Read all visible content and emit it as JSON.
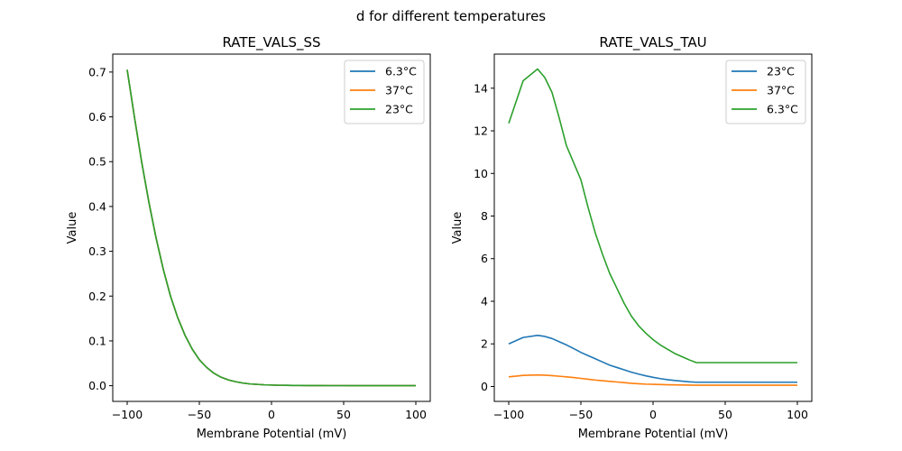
{
  "figure": {
    "suptitle": "d for different temperatures"
  },
  "chart_data": [
    {
      "type": "line",
      "title": "RATE_VALS_SS",
      "xlabel": "Membrane Potential (mV)",
      "ylabel": "Value",
      "xlim": [
        -110,
        110
      ],
      "ylim": [
        -0.035,
        0.74
      ],
      "xticks": [
        -100,
        -50,
        0,
        50,
        100
      ],
      "xtick_labels": [
        "−100",
        "−50",
        "0",
        "50",
        "100"
      ],
      "yticks": [
        0.0,
        0.1,
        0.2,
        0.3,
        0.4,
        0.5,
        0.6,
        0.7
      ],
      "ytick_labels": [
        "0.0",
        "0.1",
        "0.2",
        "0.3",
        "0.4",
        "0.5",
        "0.6",
        "0.7"
      ],
      "grid": false,
      "legend_position": "top-right",
      "x": [
        -100,
        -95,
        -90,
        -85,
        -80,
        -75,
        -70,
        -65,
        -60,
        -55,
        -50,
        -45,
        -40,
        -35,
        -30,
        -25,
        -20,
        -15,
        -10,
        -5,
        0,
        5,
        10,
        15,
        20,
        25,
        30,
        35,
        40,
        45,
        50,
        55,
        60,
        65,
        70,
        75,
        80,
        85,
        90,
        95,
        100
      ],
      "series": [
        {
          "name": "6.3°C",
          "color": "#1f77b4",
          "values": [
            0.705,
            0.6,
            0.5,
            0.41,
            0.33,
            0.26,
            0.2,
            0.152,
            0.113,
            0.082,
            0.058,
            0.041,
            0.028,
            0.019,
            0.013,
            0.009,
            0.006,
            0.004,
            0.003,
            0.002,
            0.0015,
            0.001,
            0.0008,
            0.0006,
            0.0005,
            0.0004,
            0.0003,
            0.0003,
            0.0002,
            0.0002,
            0.0002,
            0.0001,
            0.0001,
            0.0001,
            0.0001,
            0.0001,
            0.0001,
            0.0001,
            0.0001,
            0.0001,
            0.0001
          ]
        },
        {
          "name": "37°C",
          "color": "#ff7f0e",
          "values": [
            0.705,
            0.6,
            0.5,
            0.41,
            0.33,
            0.26,
            0.2,
            0.152,
            0.113,
            0.082,
            0.058,
            0.041,
            0.028,
            0.019,
            0.013,
            0.009,
            0.006,
            0.004,
            0.003,
            0.002,
            0.0015,
            0.001,
            0.0008,
            0.0006,
            0.0005,
            0.0004,
            0.0003,
            0.0003,
            0.0002,
            0.0002,
            0.0002,
            0.0001,
            0.0001,
            0.0001,
            0.0001,
            0.0001,
            0.0001,
            0.0001,
            0.0001,
            0.0001,
            0.0001
          ]
        },
        {
          "name": "23°C",
          "color": "#2ca02c",
          "values": [
            0.705,
            0.6,
            0.5,
            0.41,
            0.33,
            0.26,
            0.2,
            0.152,
            0.113,
            0.082,
            0.058,
            0.041,
            0.028,
            0.019,
            0.013,
            0.009,
            0.006,
            0.004,
            0.003,
            0.002,
            0.0015,
            0.001,
            0.0008,
            0.0006,
            0.0005,
            0.0004,
            0.0003,
            0.0003,
            0.0002,
            0.0002,
            0.0002,
            0.0001,
            0.0001,
            0.0001,
            0.0001,
            0.0001,
            0.0001,
            0.0001,
            0.0001,
            0.0001,
            0.0001
          ]
        }
      ]
    },
    {
      "type": "line",
      "title": "RATE_VALS_TAU",
      "xlabel": "Membrane Potential (mV)",
      "ylabel": "Value",
      "xlim": [
        -110,
        110
      ],
      "ylim": [
        -0.7,
        15.6
      ],
      "xticks": [
        -100,
        -50,
        0,
        50,
        100
      ],
      "xtick_labels": [
        "−100",
        "−50",
        "0",
        "50",
        "100"
      ],
      "yticks": [
        0,
        2,
        4,
        6,
        8,
        10,
        12,
        14
      ],
      "ytick_labels": [
        "0",
        "2",
        "4",
        "6",
        "8",
        "10",
        "12",
        "14"
      ],
      "grid": false,
      "legend_position": "top-right",
      "x": [
        -100,
        -90,
        -80,
        -75,
        -70,
        -65,
        -60,
        -55,
        -50,
        -45,
        -40,
        -35,
        -30,
        -25,
        -20,
        -15,
        -10,
        -5,
        0,
        5,
        10,
        15,
        20,
        25,
        30,
        40,
        50,
        60,
        70,
        80,
        90,
        100
      ],
      "series": [
        {
          "name": "23°C",
          "color": "#1f77b4",
          "values": [
            2.0,
            2.3,
            2.4,
            2.35,
            2.25,
            2.1,
            1.95,
            1.78,
            1.6,
            1.45,
            1.3,
            1.15,
            1.0,
            0.89,
            0.78,
            0.67,
            0.58,
            0.5,
            0.43,
            0.37,
            0.32,
            0.28,
            0.25,
            0.22,
            0.2,
            0.2,
            0.2,
            0.2,
            0.2,
            0.2,
            0.2,
            0.2
          ]
        },
        {
          "name": "37°C",
          "color": "#ff7f0e",
          "values": [
            0.45,
            0.52,
            0.54,
            0.53,
            0.51,
            0.48,
            0.45,
            0.42,
            0.38,
            0.34,
            0.3,
            0.27,
            0.24,
            0.21,
            0.18,
            0.15,
            0.13,
            0.11,
            0.1,
            0.09,
            0.08,
            0.075,
            0.07,
            0.065,
            0.06,
            0.06,
            0.06,
            0.06,
            0.06,
            0.06,
            0.06,
            0.06
          ]
        },
        {
          "name": "6.3°C",
          "color": "#2ca02c",
          "values": [
            12.35,
            14.35,
            14.9,
            14.5,
            13.8,
            12.6,
            11.3,
            10.5,
            9.7,
            8.4,
            7.2,
            6.2,
            5.3,
            4.6,
            3.9,
            3.3,
            2.85,
            2.5,
            2.2,
            1.95,
            1.75,
            1.55,
            1.4,
            1.25,
            1.12,
            1.12,
            1.12,
            1.12,
            1.12,
            1.12,
            1.12,
            1.12
          ]
        }
      ]
    }
  ]
}
